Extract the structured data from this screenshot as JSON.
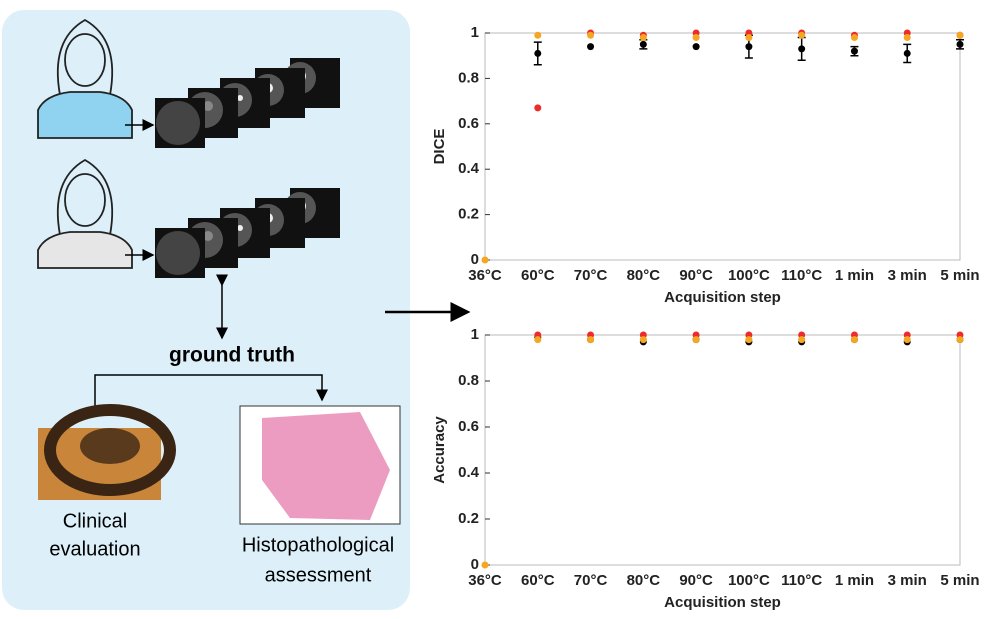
{
  "diagram": {
    "ground_truth": "ground truth",
    "left_caption": [
      "Clinical",
      "evaluation"
    ],
    "right_caption": [
      "Histopathological",
      "assessment"
    ]
  },
  "chart_data": [
    {
      "type": "scatter",
      "ylabel": "DICE",
      "xlabel": "Acquisition step",
      "categories": [
        "36°C",
        "60°C",
        "70°C",
        "80°C",
        "90°C",
        "100°C",
        "110°C",
        "1 min",
        "3 min",
        "5 min"
      ],
      "ylim": [
        0,
        1
      ],
      "yticks": [
        0,
        0.2,
        0.4,
        0.6,
        0.8,
        1
      ],
      "series": [
        {
          "color": "#000000",
          "values": [
            null,
            0.91,
            0.94,
            0.95,
            0.94,
            0.94,
            0.93,
            0.92,
            0.91,
            0.95
          ],
          "errors": [
            null,
            0.05,
            null,
            0.02,
            null,
            0.05,
            0.05,
            0.02,
            0.04,
            0.02
          ]
        },
        {
          "color": "#ee2b2b",
          "values": [
            null,
            0.67,
            1,
            0.99,
            1,
            1,
            1,
            0.99,
            1,
            0.99
          ]
        },
        {
          "color": "#f5a623",
          "values": [
            0,
            0.99,
            0.99,
            0.98,
            0.98,
            0.98,
            0.99,
            0.98,
            0.98,
            0.99
          ]
        }
      ]
    },
    {
      "type": "scatter",
      "ylabel": "Accuracy",
      "xlabel": "Acquisition step",
      "categories": [
        "36°C",
        "60°C",
        "70°C",
        "80°C",
        "90°C",
        "100°C",
        "110°C",
        "1 min",
        "3 min",
        "5 min"
      ],
      "ylim": [
        0,
        1
      ],
      "yticks": [
        0,
        0.2,
        0.4,
        0.6,
        0.8,
        1
      ],
      "series": [
        {
          "color": "#000000",
          "values": [
            null,
            0.99,
            0.98,
            0.97,
            0.98,
            0.97,
            0.97,
            0.98,
            0.97,
            0.98
          ]
        },
        {
          "color": "#ee2b2b",
          "values": [
            null,
            1,
            1,
            1,
            1,
            1,
            1,
            1,
            1,
            1
          ]
        },
        {
          "color": "#f5a623",
          "values": [
            0,
            0.98,
            0.98,
            0.98,
            0.98,
            0.98,
            0.98,
            0.98,
            0.98,
            0.98
          ]
        }
      ]
    }
  ]
}
